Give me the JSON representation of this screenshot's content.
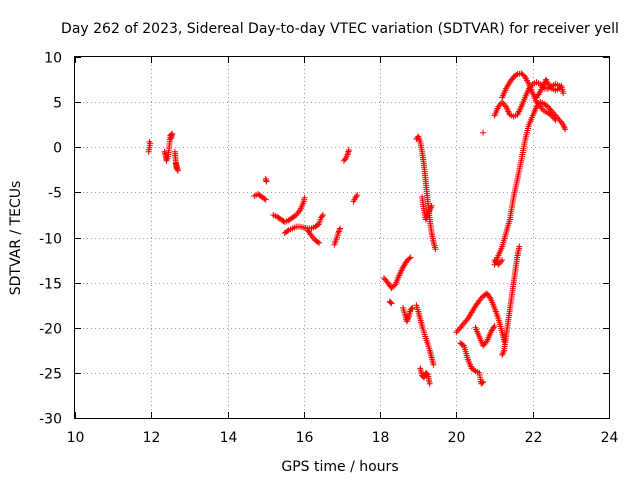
{
  "chart_data": {
    "type": "scatter",
    "title": "Day 262 of 2023, Sidereal Day-to-day VTEC variation (SDTVAR) for receiver yell",
    "xlabel": "GPS time / hours",
    "ylabel": "SDTVAR / TECUs",
    "xlim": [
      10,
      24
    ],
    "ylim": [
      -30,
      10
    ],
    "xticks": [
      "10",
      "12",
      "14",
      "16",
      "18",
      "20",
      "22",
      "24"
    ],
    "yticks": [
      "10",
      "5",
      "0",
      "-5",
      "-10",
      "-15",
      "-20",
      "-25",
      "-30"
    ],
    "grid": true,
    "marker": "+",
    "color": "#ff0000",
    "segments": [
      [
        [
          11.95,
          0.6
        ],
        [
          11.97,
          0.4
        ],
        [
          11.93,
          -0.5
        ]
      ],
      [
        [
          12.35,
          -0.5
        ],
        [
          12.38,
          -1.0
        ],
        [
          12.4,
          -1.5
        ],
        [
          12.45,
          -0.8
        ],
        [
          12.5,
          1.3
        ],
        [
          12.55,
          1.5
        ],
        [
          12.52,
          1.0
        ]
      ],
      [
        [
          12.62,
          -0.5
        ],
        [
          12.64,
          -1.5
        ],
        [
          12.66,
          -2.3
        ],
        [
          12.7,
          -2.6
        ],
        [
          12.65,
          -1.8
        ]
      ],
      [
        [
          14.7,
          -5.4
        ],
        [
          14.8,
          -5.2
        ],
        [
          14.9,
          -5.5
        ],
        [
          15.0,
          -5.8
        ]
      ],
      [
        [
          15.0,
          -3.5
        ],
        [
          15.02,
          -3.8
        ]
      ],
      [
        [
          15.2,
          -7.5
        ],
        [
          15.3,
          -7.7
        ],
        [
          15.4,
          -8.0
        ],
        [
          15.5,
          -8.3
        ],
        [
          15.6,
          -8.1
        ],
        [
          15.7,
          -7.8
        ],
        [
          15.8,
          -7.5
        ],
        [
          15.9,
          -7.0
        ],
        [
          16.0,
          -6.0
        ],
        [
          16.02,
          -5.6
        ]
      ],
      [
        [
          15.5,
          -9.5
        ],
        [
          15.6,
          -9.2
        ],
        [
          15.7,
          -9.0
        ],
        [
          15.8,
          -8.8
        ],
        [
          15.9,
          -8.8
        ],
        [
          16.0,
          -8.9
        ],
        [
          16.1,
          -9.0
        ],
        [
          16.2,
          -9.0
        ],
        [
          16.3,
          -8.8
        ],
        [
          16.4,
          -8.5
        ],
        [
          16.45,
          -7.8
        ],
        [
          16.5,
          -7.5
        ]
      ],
      [
        [
          16.1,
          -9.2
        ],
        [
          16.2,
          -9.8
        ],
        [
          16.3,
          -10.3
        ],
        [
          16.4,
          -10.6
        ]
      ],
      [
        [
          16.8,
          -10.8
        ],
        [
          16.85,
          -10.2
        ],
        [
          16.9,
          -9.5
        ],
        [
          16.95,
          -9.0
        ]
      ],
      [
        [
          17.05,
          -1.5
        ],
        [
          17.1,
          -1.2
        ],
        [
          17.15,
          -0.8
        ],
        [
          17.18,
          -0.3
        ]
      ],
      [
        [
          17.3,
          -6.0
        ],
        [
          17.35,
          -5.6
        ],
        [
          17.4,
          -5.3
        ]
      ],
      [
        [
          18.1,
          -14.5
        ],
        [
          18.2,
          -15.0
        ],
        [
          18.3,
          -15.6
        ],
        [
          18.4,
          -15.2
        ],
        [
          18.5,
          -14.2
        ],
        [
          18.6,
          -13.3
        ],
        [
          18.7,
          -12.6
        ],
        [
          18.8,
          -12.2
        ]
      ],
      [
        [
          18.25,
          -17.1
        ],
        [
          18.3,
          -17.3
        ]
      ],
      [
        [
          18.6,
          -17.8
        ],
        [
          18.65,
          -18.5
        ],
        [
          18.7,
          -19.3
        ],
        [
          18.75,
          -18.8
        ],
        [
          18.8,
          -18.0
        ],
        [
          18.85,
          -17.8
        ]
      ],
      [
        [
          18.95,
          0.9
        ],
        [
          19.0,
          1.2
        ],
        [
          19.05,
          0.6
        ],
        [
          19.1,
          -0.5
        ],
        [
          19.15,
          -2.0
        ],
        [
          19.2,
          -4.0
        ],
        [
          19.25,
          -6.0
        ],
        [
          19.3,
          -8.0
        ],
        [
          19.35,
          -9.5
        ],
        [
          19.4,
          -10.5
        ],
        [
          19.45,
          -11.3
        ]
      ],
      [
        [
          19.1,
          -5.5
        ],
        [
          19.15,
          -7.0
        ],
        [
          19.2,
          -8.0
        ],
        [
          19.25,
          -7.5
        ],
        [
          19.3,
          -7.0
        ],
        [
          19.35,
          -6.5
        ]
      ],
      [
        [
          18.95,
          -17.5
        ],
        [
          19.0,
          -18.2
        ],
        [
          19.05,
          -19.0
        ],
        [
          19.1,
          -19.8
        ],
        [
          19.15,
          -20.5
        ],
        [
          19.2,
          -21.2
        ],
        [
          19.25,
          -21.8
        ],
        [
          19.3,
          -22.5
        ],
        [
          19.35,
          -23.3
        ],
        [
          19.4,
          -24.1
        ]
      ],
      [
        [
          19.05,
          -24.5
        ],
        [
          19.1,
          -25.3
        ],
        [
          19.15,
          -25.5
        ],
        [
          19.2,
          -25.0
        ],
        [
          19.25,
          -25.2
        ],
        [
          19.3,
          -26.2
        ]
      ],
      [
        [
          20.0,
          -20.5
        ],
        [
          20.1,
          -20.0
        ],
        [
          20.2,
          -19.5
        ],
        [
          20.3,
          -19.0
        ],
        [
          20.4,
          -18.3
        ],
        [
          20.5,
          -17.6
        ],
        [
          20.6,
          -17.0
        ],
        [
          20.7,
          -16.5
        ],
        [
          20.8,
          -16.2
        ],
        [
          20.9,
          -16.8
        ],
        [
          21.0,
          -17.8
        ],
        [
          21.1,
          -19.0
        ],
        [
          21.2,
          -20.5
        ],
        [
          21.25,
          -21.5
        ]
      ],
      [
        [
          20.1,
          -21.7
        ],
        [
          20.2,
          -22.0
        ],
        [
          20.3,
          -23.5
        ],
        [
          20.4,
          -24.5
        ],
        [
          20.5,
          -24.8
        ],
        [
          20.6,
          -25.0
        ],
        [
          20.65,
          -26.2
        ],
        [
          20.7,
          -26.0
        ]
      ],
      [
        [
          20.5,
          -20.0
        ],
        [
          20.6,
          -21.0
        ],
        [
          20.7,
          -22.0
        ],
        [
          20.8,
          -21.5
        ],
        [
          20.9,
          -20.5
        ],
        [
          21.0,
          -19.8
        ]
      ],
      [
        [
          21.0,
          -12.5
        ],
        [
          21.1,
          -13.0
        ],
        [
          21.2,
          -12.5
        ]
      ],
      [
        [
          21.2,
          -23.0
        ],
        [
          21.25,
          -22.5
        ],
        [
          21.3,
          -21.0
        ],
        [
          21.35,
          -19.5
        ],
        [
          21.4,
          -18.0
        ],
        [
          21.45,
          -16.5
        ],
        [
          21.5,
          -15.0
        ],
        [
          21.55,
          -13.5
        ],
        [
          21.6,
          -12.0
        ],
        [
          21.65,
          -11.0
        ]
      ],
      [
        [
          20.7,
          1.6
        ]
      ],
      [
        [
          21.0,
          -13.0
        ],
        [
          21.1,
          -12.0
        ],
        [
          21.2,
          -11.0
        ],
        [
          21.3,
          -9.5
        ],
        [
          21.4,
          -8.0
        ],
        [
          21.5,
          -5.5
        ],
        [
          21.6,
          -3.5
        ],
        [
          21.7,
          -1.5
        ],
        [
          21.8,
          0.8
        ],
        [
          21.9,
          2.5
        ],
        [
          22.0,
          3.5
        ],
        [
          22.1,
          4.5
        ],
        [
          22.2,
          5.0
        ],
        [
          22.3,
          4.8
        ],
        [
          22.4,
          4.5
        ],
        [
          22.5,
          4.0
        ],
        [
          22.6,
          3.5
        ],
        [
          22.7,
          3.0
        ],
        [
          22.8,
          2.5
        ],
        [
          22.85,
          2.0
        ]
      ],
      [
        [
          21.0,
          3.5
        ],
        [
          21.1,
          4.5
        ],
        [
          21.2,
          5.0
        ],
        [
          21.3,
          4.5
        ],
        [
          21.4,
          3.6
        ],
        [
          21.5,
          3.4
        ],
        [
          21.6,
          3.6
        ],
        [
          21.7,
          4.5
        ],
        [
          21.8,
          5.5
        ],
        [
          21.9,
          6.5
        ],
        [
          22.0,
          7.0
        ],
        [
          22.1,
          7.2
        ],
        [
          22.2,
          7.0
        ],
        [
          22.3,
          6.5
        ],
        [
          22.4,
          6.5
        ],
        [
          22.5,
          6.8
        ],
        [
          22.6,
          7.0
        ],
        [
          22.7,
          6.8
        ]
      ],
      [
        [
          21.2,
          5.5
        ],
        [
          21.3,
          6.5
        ],
        [
          21.4,
          7.2
        ],
        [
          21.5,
          7.8
        ],
        [
          21.6,
          8.1
        ],
        [
          21.7,
          8.2
        ],
        [
          21.8,
          7.8
        ],
        [
          21.9,
          7.0
        ],
        [
          22.0,
          6.0
        ],
        [
          22.1,
          5.0
        ],
        [
          22.2,
          4.5
        ],
        [
          22.3,
          4.0
        ],
        [
          22.4,
          3.8
        ],
        [
          22.5,
          3.5
        ],
        [
          22.6,
          3.0
        ]
      ],
      [
        [
          22.1,
          5.5
        ],
        [
          22.2,
          6.2
        ],
        [
          22.3,
          7.0
        ],
        [
          22.35,
          7.5
        ],
        [
          22.4,
          7.0
        ],
        [
          22.5,
          6.5
        ],
        [
          22.6,
          6.3
        ],
        [
          22.7,
          6.5
        ],
        [
          22.75,
          6.8
        ],
        [
          22.8,
          6.0
        ]
      ]
    ]
  }
}
